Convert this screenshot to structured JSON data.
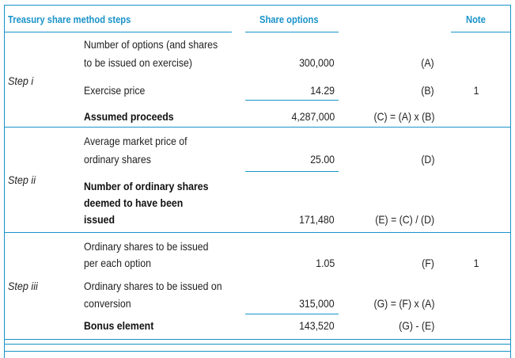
{
  "colors": {
    "accent": "#1a93c9",
    "text": "#222222"
  },
  "header": {
    "steps_title": "Treasury share method steps",
    "share_options": "Share options",
    "note": "Note"
  },
  "step1": {
    "label": "Step i",
    "options_line1": "Number of options (and shares",
    "options_line2": "to be issued on exercise)",
    "options_value": "300,000",
    "options_ref": "(A)",
    "exercise_label": "Exercise price",
    "exercise_value": "14.29",
    "exercise_ref": "(B)",
    "exercise_note": "1",
    "proceeds_label": "Assumed proceeds",
    "proceeds_value": "4,287,000",
    "proceeds_ref": "(C) = (A) x (B)"
  },
  "step2": {
    "label": "Step ii",
    "avg_line1": "Average market price of",
    "avg_line2": "ordinary shares",
    "avg_value": "25.00",
    "avg_ref": "(D)",
    "num_line1": "Number of ordinary shares",
    "num_line2": "deemed to have been",
    "num_line3": "issued",
    "num_value": "171,480",
    "num_ref": "(E) = (C) / (D)"
  },
  "step3": {
    "label": "Step iii",
    "per_line1": "Ordinary shares to be issued",
    "per_line2": "per each option",
    "per_value": "1.05",
    "per_ref": "(F)",
    "per_note": "1",
    "conv_line1": "Ordinary shares to be issued on",
    "conv_line2": "conversion",
    "conv_value": "315,000",
    "conv_ref": "(G) = (F) x (A)",
    "bonus_label": "Bonus element",
    "bonus_value": "143,520",
    "bonus_ref": "(G) - (E)"
  }
}
